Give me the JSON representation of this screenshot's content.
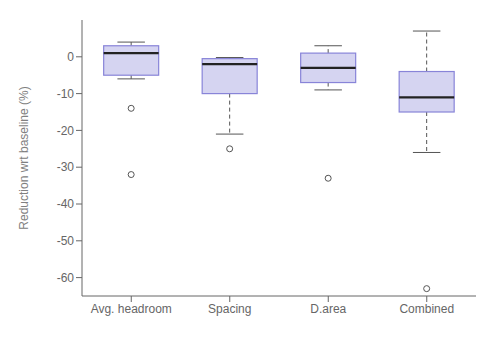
{
  "chart_data": {
    "type": "box",
    "categories": [
      "Avg. headroom",
      "Spacing",
      "D.area",
      "Combined"
    ],
    "ylabel": "Reduction wrt baseline (%)",
    "ylim": [
      -65,
      10
    ],
    "yticks": [
      0,
      -10,
      -20,
      -30,
      -40,
      -50,
      -60
    ],
    "grid": false,
    "boxes": [
      {
        "q1": -5,
        "median": 1,
        "q3": 3,
        "whislo": -6,
        "whishi": 4,
        "fliers": [
          -14,
          -32
        ]
      },
      {
        "q1": -10,
        "median": -2,
        "q3": -0.5,
        "whislo": -21,
        "whishi": -0.2,
        "fliers": [
          -25
        ]
      },
      {
        "q1": -7,
        "median": -3,
        "q3": 1,
        "whislo": -9,
        "whishi": 3,
        "fliers": [
          -33
        ]
      },
      {
        "q1": -15,
        "median": -11,
        "q3": -4,
        "whislo": -26,
        "whishi": 7,
        "fliers": [
          -63
        ]
      }
    ]
  }
}
